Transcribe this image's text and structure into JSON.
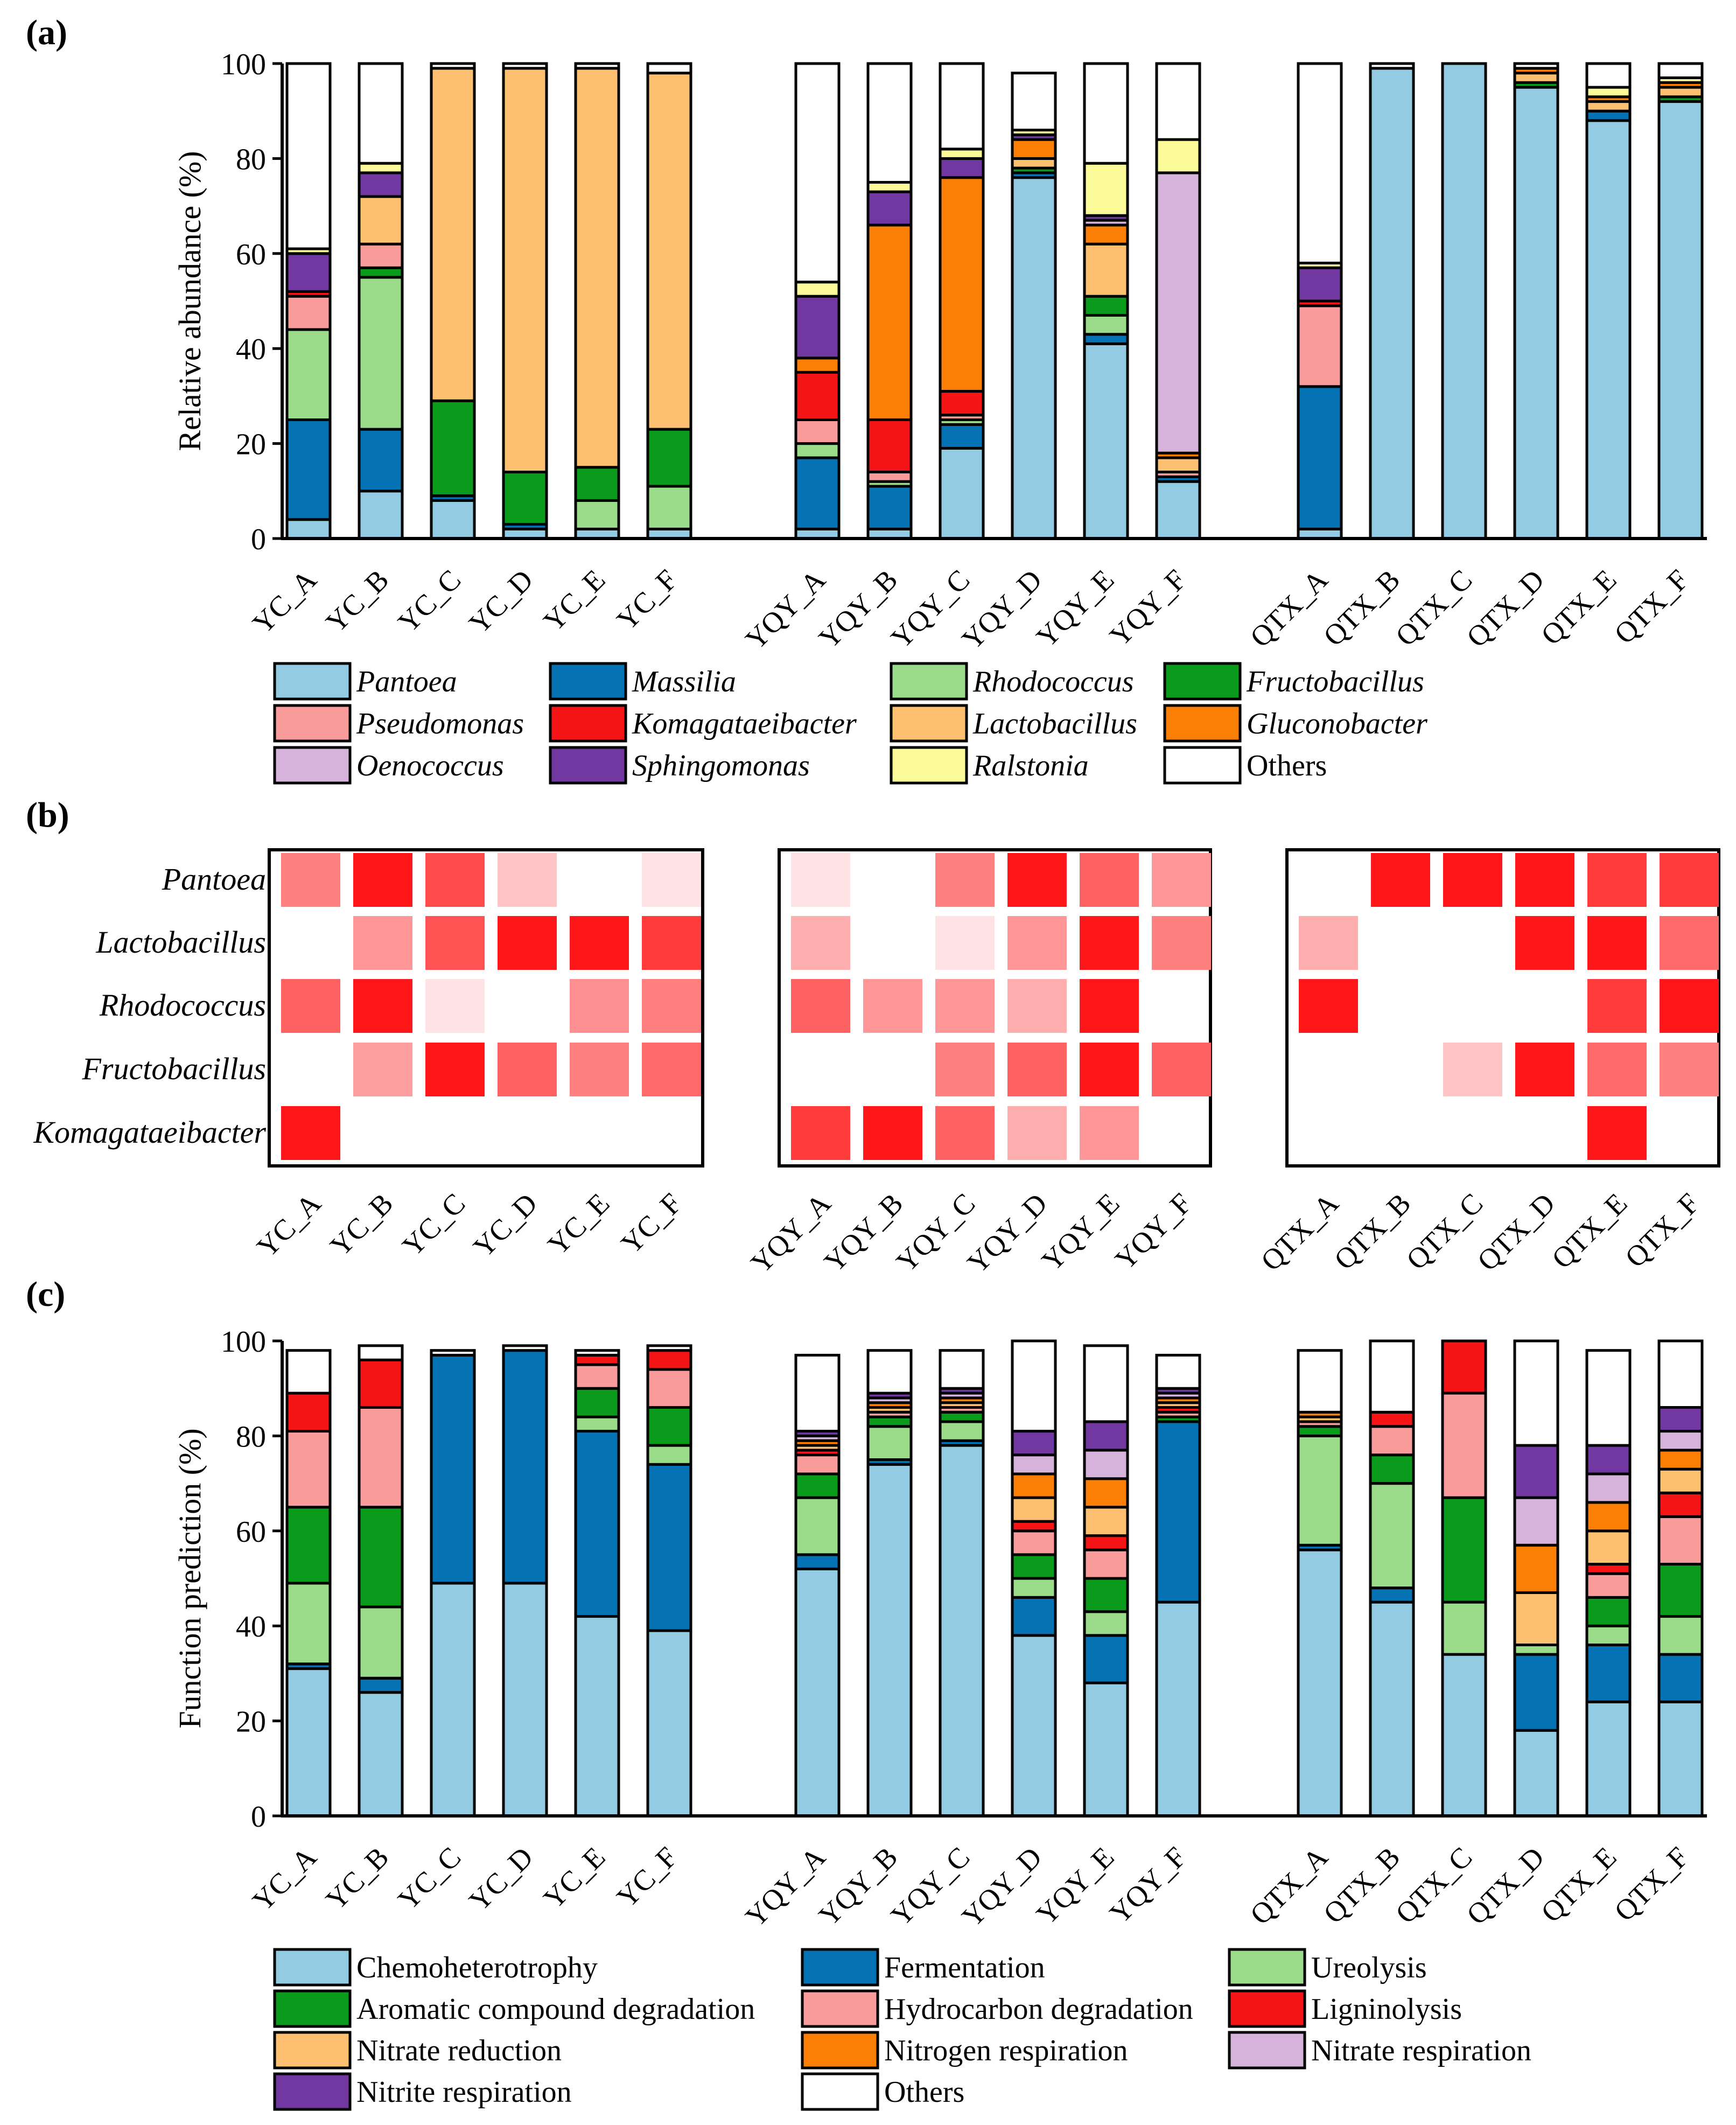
{
  "panel_labels": [
    "(a)",
    "(b)",
    "(c)"
  ],
  "samples": [
    "YC_A",
    "YC_B",
    "YC_C",
    "YC_D",
    "YC_E",
    "YC_F",
    "YQY_A",
    "YQY_B",
    "YQY_C",
    "YQY_D",
    "YQY_E",
    "YQY_F",
    "QTX_A",
    "QTX_B",
    "QTX_C",
    "QTX_D",
    "QTX_E",
    "QTX_F"
  ],
  "chart_data": [
    {
      "panel": "(a)",
      "type": "bar",
      "stacked": true,
      "ylabel": "Relative abundance (%)",
      "ylim": [
        0,
        100
      ],
      "yticks": [
        "0",
        "20",
        "40",
        "60",
        "80",
        "100"
      ],
      "categories": [
        "YC_A",
        "YC_B",
        "YC_C",
        "YC_D",
        "YC_E",
        "YC_F",
        "YQY_A",
        "YQY_B",
        "YQY_C",
        "YQY_D",
        "YQY_E",
        "YQY_F",
        "QTX_A",
        "QTX_B",
        "QTX_C",
        "QTX_D",
        "QTX_E",
        "QTX_F"
      ],
      "series": [
        {
          "name": "Pantoea",
          "italic": true,
          "color": "#93cce2",
          "values": [
            4,
            10,
            8,
            2,
            2,
            2,
            2,
            2,
            19,
            76,
            41,
            12,
            2,
            99,
            100,
            95,
            88,
            92
          ]
        },
        {
          "name": "Massilia",
          "italic": true,
          "color": "#0572b3",
          "values": [
            21,
            13,
            1,
            1,
            0,
            0,
            15,
            9,
            5,
            1,
            2,
            1,
            30,
            0,
            0,
            0,
            2,
            0
          ]
        },
        {
          "name": "Rhodococcus",
          "italic": true,
          "color": "#9bdc8a",
          "values": [
            19,
            32,
            0,
            0,
            6,
            9,
            3,
            1,
            1,
            0,
            4,
            0,
            0,
            0,
            0,
            0,
            0,
            0
          ]
        },
        {
          "name": "Fructobacillus",
          "italic": true,
          "color": "#0a9a1c",
          "values": [
            0,
            2,
            20,
            11,
            7,
            12,
            0,
            0,
            0,
            1,
            4,
            0,
            0,
            0,
            0,
            1,
            0,
            1
          ]
        },
        {
          "name": "Pseudomonas",
          "italic": true,
          "color": "#fa9c9c",
          "values": [
            7,
            5,
            0,
            0,
            0,
            0,
            5,
            2,
            1,
            0,
            0,
            1,
            17,
            0,
            0,
            0,
            0,
            0
          ]
        },
        {
          "name": "Komagataeibacter",
          "italic": true,
          "color": "#f51416",
          "values": [
            1,
            0,
            0,
            0,
            0,
            0,
            10,
            11,
            5,
            0,
            0,
            0,
            1,
            0,
            0,
            0,
            0,
            0
          ]
        },
        {
          "name": "Lactobacillus",
          "italic": true,
          "color": "#fcc070",
          "values": [
            0,
            10,
            70,
            85,
            84,
            75,
            0,
            0,
            0,
            2,
            11,
            3,
            0,
            0,
            0,
            2,
            2,
            2
          ]
        },
        {
          "name": "Gluconobacter",
          "italic": true,
          "color": "#fb7f04",
          "values": [
            0,
            0,
            0,
            0,
            0,
            0,
            3,
            41,
            45,
            4,
            4,
            1,
            0,
            0,
            0,
            1,
            1,
            1
          ]
        },
        {
          "name": "Oenococcus",
          "italic": true,
          "color": "#d6b3da",
          "values": [
            0,
            0,
            0,
            0,
            0,
            0,
            0,
            0,
            0,
            0,
            1,
            59,
            0,
            0,
            0,
            0,
            0,
            0
          ]
        },
        {
          "name": "Sphingomonas",
          "italic": true,
          "color": "#7038a0",
          "values": [
            8,
            5,
            0,
            0,
            0,
            0,
            13,
            7,
            4,
            1,
            1,
            0,
            7,
            0,
            0,
            0,
            0,
            0
          ]
        },
        {
          "name": "Ralstonia",
          "italic": true,
          "color": "#fbfb9a",
          "values": [
            1,
            2,
            0,
            0,
            0,
            0,
            3,
            2,
            2,
            1,
            11,
            7,
            1,
            0,
            0,
            0,
            2,
            1
          ]
        },
        {
          "name": "Others",
          "italic": false,
          "color": "#ffffff",
          "values": [
            39,
            21,
            1,
            1,
            1,
            2,
            46,
            25,
            18,
            12,
            21,
            16,
            42,
            1,
            0,
            1,
            5,
            3
          ]
        }
      ]
    },
    {
      "panel": "(b)",
      "type": "heatmap",
      "rows": [
        "Pantoea",
        "Lactobacillus",
        "Rhodococcus",
        "Fructobacillus",
        "Komagataeibacter"
      ],
      "groups": [
        {
          "columns": [
            "YC_A",
            "YC_B",
            "YC_C",
            "YC_D",
            "YC_E",
            "YC_F"
          ],
          "values": [
            [
              0.55,
              1.0,
              0.78,
              0.25,
              0,
              0.12
            ],
            [
              0,
              0.45,
              0.75,
              1.0,
              1.0,
              0.85
            ],
            [
              0.68,
              1.0,
              0.12,
              0,
              0.48,
              0.56
            ],
            [
              0,
              0.42,
              1.0,
              0.68,
              0.55,
              0.65
            ],
            [
              1.0,
              0,
              0,
              0,
              0,
              0
            ]
          ]
        },
        {
          "columns": [
            "YQY_A",
            "YQY_B",
            "YQY_C",
            "YQY_D",
            "YQY_E",
            "YQY_F"
          ],
          "values": [
            [
              0.12,
              0,
              0.55,
              1.0,
              0.68,
              0.45
            ],
            [
              0.35,
              0,
              0.12,
              0.45,
              1.0,
              0.55
            ],
            [
              0.68,
              0.45,
              0.45,
              0.35,
              1.0,
              0
            ],
            [
              0,
              0,
              0.55,
              0.68,
              1.0,
              0.68
            ],
            [
              0.85,
              1.0,
              0.68,
              0.35,
              0.45,
              0
            ]
          ]
        },
        {
          "columns": [
            "QTX_A",
            "QTX_B",
            "QTX_C",
            "QTX_D",
            "QTX_E",
            "QTX_F"
          ],
          "values": [
            [
              0,
              1.0,
              1.0,
              1.0,
              0.85,
              0.85
            ],
            [
              0.35,
              0,
              0,
              1.0,
              1.0,
              0.65
            ],
            [
              1.0,
              0,
              0,
              0,
              0.85,
              1.0
            ],
            [
              0,
              0,
              0.25,
              1.0,
              0.65,
              0.55
            ],
            [
              0,
              0,
              0,
              0,
              1.0,
              0
            ]
          ]
        }
      ]
    },
    {
      "panel": "(c)",
      "type": "bar",
      "stacked": true,
      "ylabel": "Function prediction (%)",
      "ylim": [
        0,
        100
      ],
      "yticks": [
        "0",
        "20",
        "40",
        "60",
        "80",
        "100"
      ],
      "categories": [
        "YC_A",
        "YC_B",
        "YC_C",
        "YC_D",
        "YC_E",
        "YC_F",
        "YQY_A",
        "YQY_B",
        "YQY_C",
        "YQY_D",
        "YQY_E",
        "YQY_F",
        "QTX_A",
        "QTX_B",
        "QTX_C",
        "QTX_D",
        "QTX_E",
        "QTX_F"
      ],
      "series": [
        {
          "name": "Chemoheterotrophy",
          "color": "#93cce2",
          "values": [
            31,
            26,
            49,
            49,
            42,
            39,
            52,
            74,
            78,
            38,
            28,
            45,
            56,
            45,
            34,
            18,
            24,
            24
          ]
        },
        {
          "name": "Fermentation",
          "color": "#0572b3",
          "values": [
            1,
            3,
            48,
            49,
            39,
            35,
            3,
            1,
            1,
            8,
            10,
            38,
            1,
            3,
            0,
            16,
            12,
            10
          ]
        },
        {
          "name": "Ureolysis",
          "color": "#9bdc8a",
          "values": [
            17,
            15,
            0,
            0,
            3,
            4,
            12,
            7,
            4,
            4,
            5,
            0,
            23,
            22,
            11,
            2,
            4,
            8
          ]
        },
        {
          "name": "Aromatic compound degradation",
          "color": "#0a9a1c",
          "values": [
            16,
            21,
            0,
            0,
            6,
            8,
            5,
            2,
            2,
            5,
            7,
            1,
            2,
            6,
            22,
            0,
            6,
            11
          ]
        },
        {
          "name": "Hydrocarbon degradation",
          "color": "#fa9c9c",
          "values": [
            16,
            21,
            0,
            0,
            5,
            8,
            4,
            1,
            1,
            5,
            6,
            1,
            1,
            6,
            22,
            0,
            5,
            10
          ]
        },
        {
          "name": "Ligninolysis",
          "color": "#f51416",
          "values": [
            8,
            10,
            0,
            0,
            2,
            4,
            1,
            0,
            0,
            2,
            3,
            1,
            0,
            3,
            11,
            0,
            2,
            5
          ]
        },
        {
          "name": "Nitrate reduction",
          "color": "#fcc070",
          "values": [
            0,
            0,
            0,
            0,
            0,
            0,
            1,
            1,
            1,
            5,
            6,
            1,
            1,
            0,
            0,
            11,
            7,
            5
          ]
        },
        {
          "name": "Nitrogen respiration",
          "color": "#fb7f04",
          "values": [
            0,
            0,
            0,
            0,
            0,
            0,
            1,
            1,
            1,
            5,
            6,
            1,
            1,
            0,
            0,
            10,
            6,
            4
          ]
        },
        {
          "name": "Nitrate respiration",
          "color": "#d6b3da",
          "values": [
            0,
            0,
            0,
            0,
            0,
            0,
            1,
            1,
            1,
            4,
            6,
            1,
            0,
            0,
            0,
            10,
            6,
            4
          ]
        },
        {
          "name": "Nitrite respiration",
          "color": "#7038a0",
          "values": [
            0,
            0,
            0,
            0,
            0,
            0,
            1,
            1,
            1,
            5,
            6,
            1,
            0,
            0,
            0,
            11,
            6,
            5
          ]
        },
        {
          "name": "Others",
          "color": "#ffffff",
          "values": [
            9,
            3,
            1,
            1,
            1,
            1,
            16,
            9,
            8,
            19,
            16,
            7,
            13,
            15,
            0,
            22,
            20,
            14
          ]
        }
      ]
    }
  ]
}
